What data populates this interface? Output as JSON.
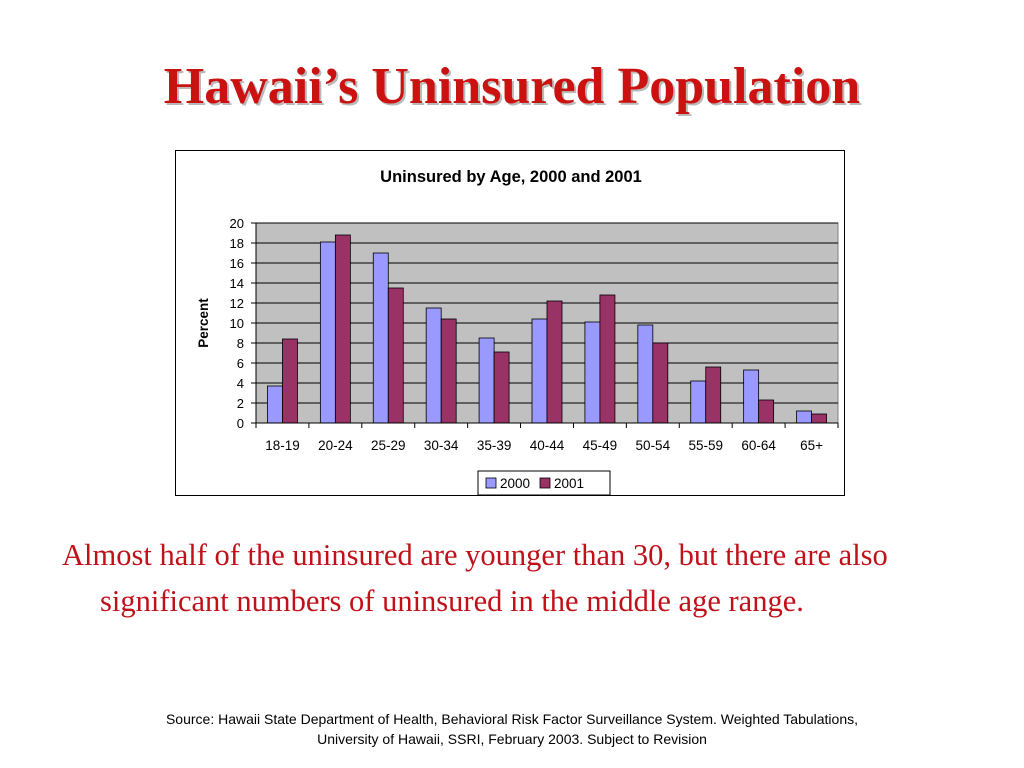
{
  "slide": {
    "title": "Hawaii’s Uninsured Population",
    "body": "Almost half of the uninsured are younger than 30, but there are also significant numbers of uninsured in the middle age range.",
    "source_line1": "Source: Hawaii State Department of Health, Behavioral Risk Factor Surveillance System.  Weighted Tabulations,",
    "source_line2": "University of Hawaii, SSRI, February 2003.  Subject to Revision"
  },
  "colors": {
    "title": "#cc1111",
    "body_text": "#c0101a",
    "plot_area": "#c0c0c0",
    "series_2000": "#9999ff",
    "series_2001": "#993366"
  },
  "chart_data": {
    "type": "bar",
    "title": "Uninsured by Age, 2000 and 2001",
    "xlabel": "",
    "ylabel": "Percent",
    "ylim": [
      0,
      20
    ],
    "yticks": [
      0,
      2,
      4,
      6,
      8,
      10,
      12,
      14,
      16,
      18,
      20
    ],
    "grid": true,
    "legend_position": "bottom",
    "categories": [
      "18-19",
      "20-24",
      "25-29",
      "30-34",
      "35-39",
      "40-44",
      "45-49",
      "50-54",
      "55-59",
      "60-64",
      "65+"
    ],
    "series": [
      {
        "name": "2000",
        "values": [
          3.7,
          18.1,
          17.0,
          11.5,
          8.5,
          10.4,
          10.1,
          9.8,
          4.2,
          5.3,
          1.2
        ]
      },
      {
        "name": "2001",
        "values": [
          8.4,
          18.8,
          13.5,
          10.4,
          7.1,
          12.2,
          12.8,
          8.0,
          5.6,
          2.3,
          0.9
        ]
      }
    ]
  }
}
